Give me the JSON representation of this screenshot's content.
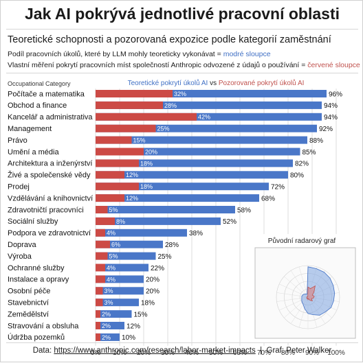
{
  "title": "Jak AI pokrývá jednotlivé pracovní oblasti",
  "subtitle": "Teoretické schopnosti a pozorovaná expozice podle kategorií zaměstnání",
  "note1": {
    "text": "Podíl pracovních úkolů, které by LLM mohly teoreticky vykonávat = ",
    "highlight": "modré sloupce"
  },
  "note2": {
    "text": "Vlastní měření pokrytí pracovních míst společností Anthropic odvozené z údajů o používání = ",
    "highlight": "červené sloupce"
  },
  "colors": {
    "blue": "#4a77c8",
    "red": "#cc4a45",
    "grid": "#dcdcdc"
  },
  "chart_data": {
    "type": "bar",
    "orientation": "horizontal",
    "category_axis_label": "Occupational Category",
    "legend": {
      "blue_label": "Teoretické pokrytí úkolů AI",
      "joiner": "vs",
      "red_label": "Pozorované pokrytí úkolů AI",
      "position": "top"
    },
    "categories": [
      "Počítače a matematika",
      "Obchod a finance",
      "Kancelář a administrativa",
      "Management",
      "Právo",
      "Umění a média",
      "Architektura a inženýrství",
      "Živé a společenské vědy",
      "Prodej",
      "Vzdělávání a knihovnictví",
      "Zdravotničtí pracovníci",
      "Sociální služby",
      "Podpora ve zdravotnictví",
      "Doprava",
      "Výroba",
      "Ochranné služby",
      "Instalace a opravy",
      "Osobní péče",
      "Stavebnictví",
      "Zemědělství",
      "Stravování a obsluha",
      "Údržba pozemků"
    ],
    "series": [
      {
        "name": "Teoretické pokrytí úkolů AI",
        "values": [
          96,
          94,
          94,
          92,
          88,
          85,
          82,
          80,
          72,
          68,
          58,
          52,
          38,
          28,
          25,
          22,
          20,
          20,
          18,
          15,
          12,
          10
        ]
      },
      {
        "name": "Pozorované pokrytí úkolů AI",
        "values": [
          32,
          28,
          42,
          25,
          15,
          20,
          18,
          12,
          18,
          12,
          5,
          8,
          4,
          6,
          5,
          4,
          4,
          3,
          3,
          2,
          2,
          2
        ]
      }
    ],
    "xlim": [
      0,
      100
    ],
    "xticks": [
      "0%",
      "10%",
      "20%",
      "30%",
      "40%",
      "50%",
      "60%",
      "70%",
      "80%",
      "90%",
      "100%"
    ],
    "grid": true,
    "inset": {
      "title": "Původní radarový graf"
    }
  },
  "footer": {
    "prefix": "Data: ",
    "url": "https://www.anthropic.com/research/labor-market-impacts",
    "separator": "  |  ",
    "credit": "Graf: Peter Walker"
  }
}
